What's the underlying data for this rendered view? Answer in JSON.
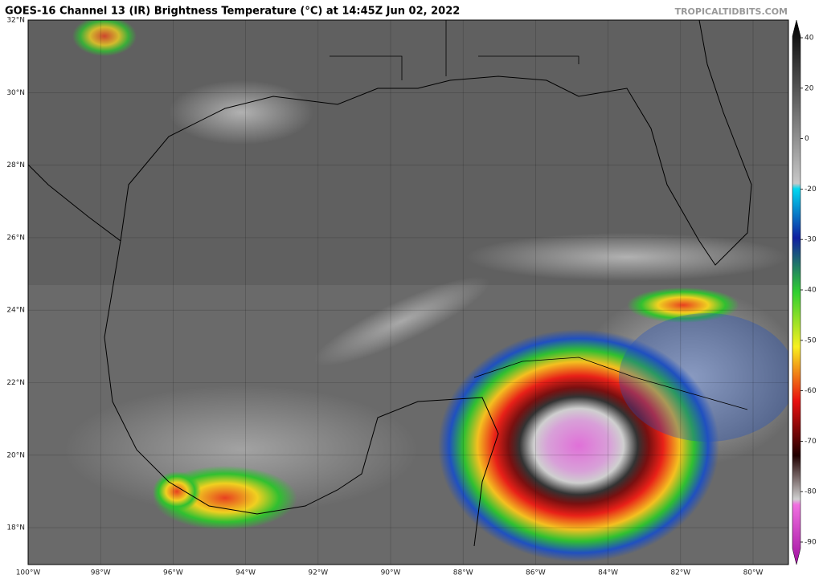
{
  "header": {
    "title": "GOES-16 Channel 13 (IR) Brightness Temperature (°C) at 14:45Z Jun 02, 2022",
    "source": "TROPICALTIDBITS.COM"
  },
  "map": {
    "lat_labels": [
      "32°N",
      "30°N",
      "28°N",
      "26°N",
      "24°N",
      "22°N",
      "20°N",
      "18°N"
    ],
    "lon_labels": [
      "100°W",
      "98°W",
      "96°W",
      "94°W",
      "92°W",
      "90°W",
      "88°W",
      "86°W",
      "84°W",
      "82°W",
      "80°W"
    ]
  },
  "colorbar": {
    "ticks": [
      40,
      20,
      0,
      -20,
      -30,
      -40,
      -50,
      -60,
      -70,
      -80,
      -90
    ]
  }
}
